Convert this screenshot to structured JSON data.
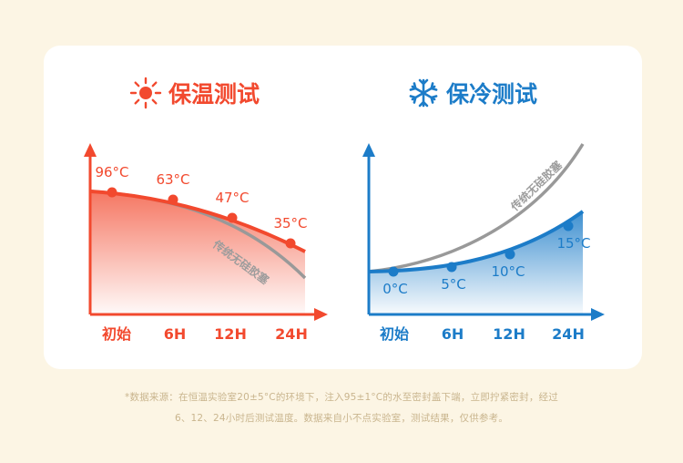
{
  "charts": {
    "hot": {
      "title": "保温测试",
      "icon": "sun-icon",
      "color": "#F2492E",
      "chart_data": {
        "type": "line",
        "categories": [
          "初始",
          "6H",
          "12H",
          "24H"
        ],
        "series": [
          {
            "name": "",
            "values": [
              96,
              63,
              47,
              35
            ],
            "labels": [
              "96°C",
              "63°C",
              "47°C",
              "35°C"
            ]
          }
        ],
        "comparison_label": "传统无硅胶塞",
        "xlabel": "",
        "ylabel": ""
      }
    },
    "cold": {
      "title": "保冷测试",
      "icon": "snowflake-icon",
      "color": "#1C7CC8",
      "chart_data": {
        "type": "line",
        "categories": [
          "初始",
          "6H",
          "12H",
          "24H"
        ],
        "series": [
          {
            "name": "",
            "values": [
              0,
              5,
              10,
              15
            ],
            "labels": [
              "0°C",
              "5°C",
              "10°C",
              "15°C"
            ]
          }
        ],
        "comparison_label": "传统无硅胶塞",
        "xlabel": "",
        "ylabel": ""
      }
    }
  },
  "footnote": {
    "line1": "*数据来源：在恒温实验室20±5°C的环境下，注入95±1°C的水至密封盖下端，立即拧紧密封，经过",
    "line2": "6、12、24小时后测试温度。数据来自小不点实验室，测试结果，仅供参考。"
  },
  "colors": {
    "comparison_line": "#999999",
    "background": "#FCF5E4",
    "card": "#FFFFFF"
  }
}
